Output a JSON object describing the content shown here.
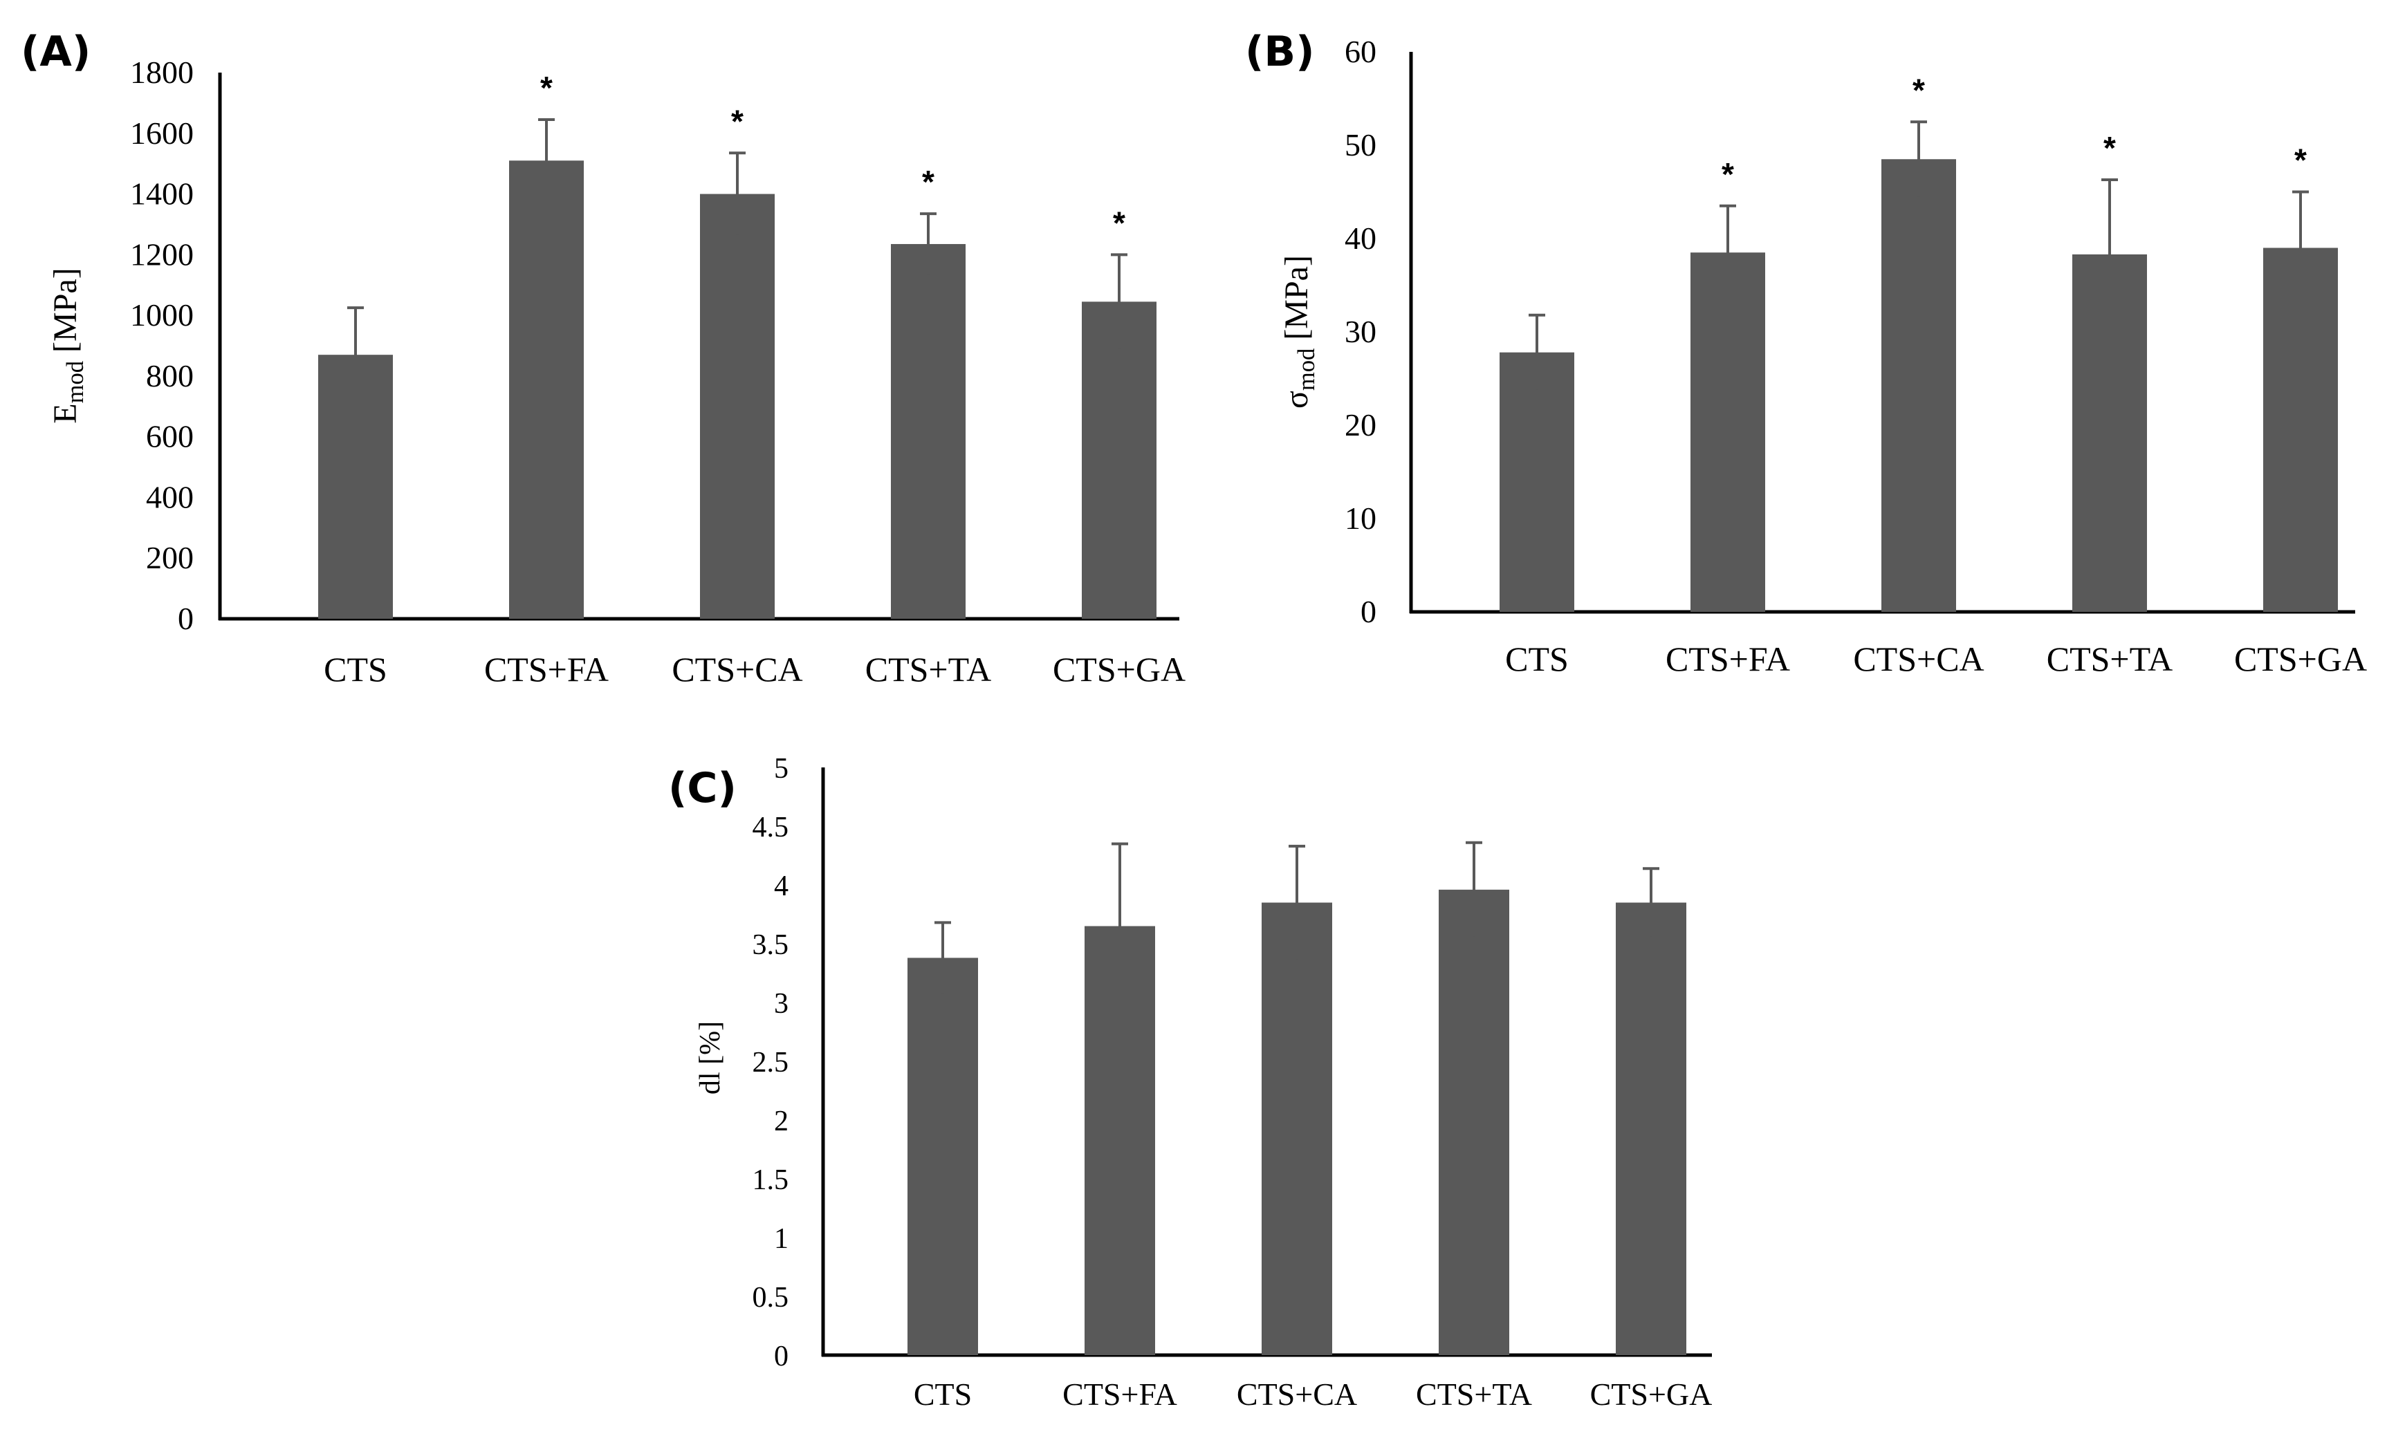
{
  "chart_data": [
    {
      "type": "bar",
      "panel_label": "(A)",
      "categories": [
        "CTS",
        "CTS+FA",
        "CTS+CA",
        "CTS+TA",
        "CTS+GA"
      ],
      "values": [
        870,
        1510,
        1400,
        1235,
        1045
      ],
      "errors": [
        155,
        135,
        135,
        100,
        155
      ],
      "significance": [
        "",
        "*",
        "*",
        "*",
        "*"
      ],
      "ylabel": "E",
      "ylabel_sub": "mod",
      "ylabel_suffix": " [MPa]",
      "ylim": [
        0,
        1800
      ],
      "yticks": [
        0,
        200,
        400,
        600,
        800,
        1000,
        1200,
        1400,
        1600,
        1800
      ],
      "ytick_labels": [
        "0",
        "200",
        "400",
        "600",
        "800",
        "1000",
        "1200",
        "1400",
        "1600",
        "1800"
      ]
    },
    {
      "type": "bar",
      "panel_label": "(B)",
      "categories": [
        "CTS",
        "CTS+FA",
        "CTS+CA",
        "CTS+TA",
        "CTS+GA"
      ],
      "values": [
        27.8,
        38.5,
        48.5,
        38.3,
        39.0
      ],
      "errors": [
        4.0,
        5.0,
        4.0,
        8.0,
        6.0
      ],
      "significance": [
        "",
        "*",
        "*",
        "*",
        "*"
      ],
      "ylabel": "σ",
      "ylabel_sub": "mod",
      "ylabel_suffix": " [MPa]",
      "ylim": [
        0,
        60
      ],
      "yticks": [
        0,
        10,
        20,
        30,
        40,
        50,
        60
      ],
      "ytick_labels": [
        "0",
        "10",
        "20",
        "30",
        "40",
        "50",
        "60"
      ]
    },
    {
      "type": "bar",
      "panel_label": "(C)",
      "categories": [
        "CTS",
        "CTS+FA",
        "CTS+CA",
        "CTS+TA",
        "CTS+GA"
      ],
      "values": [
        3.38,
        3.65,
        3.85,
        3.96,
        3.85
      ],
      "errors": [
        0.3,
        0.7,
        0.48,
        0.4,
        0.29
      ],
      "significance": [
        "",
        "",
        "",
        "",
        ""
      ],
      "ylabel": "dl [%]",
      "ylim": [
        0,
        5
      ],
      "yticks": [
        0,
        0.5,
        1,
        1.5,
        2,
        2.5,
        3,
        3.5,
        4,
        4.5,
        5
      ],
      "ytick_labels": [
        "0",
        "0.5",
        "1",
        "1.5",
        "2",
        "2.5",
        "3",
        "3.5",
        "4",
        "4.5",
        "5"
      ]
    }
  ]
}
